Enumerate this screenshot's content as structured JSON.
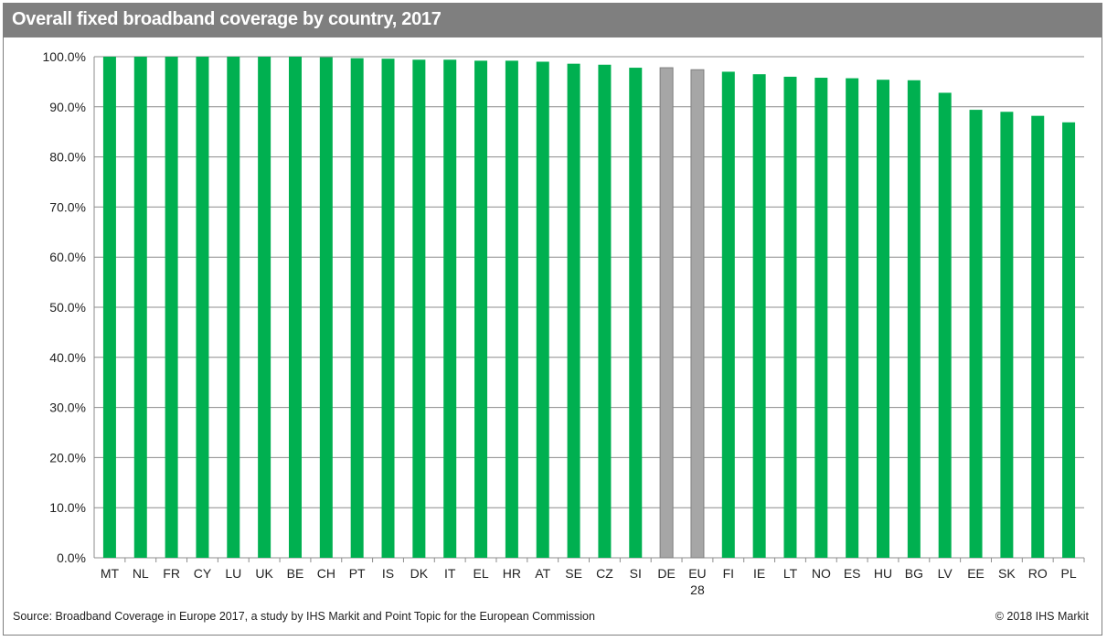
{
  "title": "Overall fixed broadband coverage by country, 2017",
  "footer": {
    "source": "Source: Broadband Coverage in Europe 2017, a study by IHS Markit and Point Topic for the European Commission",
    "copyright": "© 2018 IHS Markit"
  },
  "colors": {
    "bar": "#00b050",
    "highlight": "#a6a6a6",
    "highlight_border": "#7f7f7f",
    "title_bg": "#7f7f7f"
  },
  "chart_data": {
    "type": "bar",
    "categories": [
      "MT",
      "NL",
      "FR",
      "CY",
      "LU",
      "UK",
      "BE",
      "CH",
      "PT",
      "IS",
      "DK",
      "IT",
      "EL",
      "HR",
      "AT",
      "SE",
      "CZ",
      "SI",
      "DE",
      "EU 28",
      "FI",
      "IE",
      "LT",
      "NO",
      "ES",
      "HU",
      "BG",
      "LV",
      "EE",
      "SK",
      "RO",
      "PL"
    ],
    "values": [
      100.0,
      100.0,
      100.0,
      100.0,
      100.0,
      100.0,
      100.0,
      99.9,
      99.7,
      99.6,
      99.4,
      99.4,
      99.2,
      99.2,
      99.0,
      98.6,
      98.4,
      97.8,
      97.8,
      97.4,
      97.0,
      96.5,
      96.0,
      95.8,
      95.7,
      95.4,
      95.3,
      92.8,
      89.4,
      89.0,
      88.2,
      86.9
    ],
    "highlight_categories": [
      "DE",
      "EU 28"
    ],
    "ylim": [
      0,
      100
    ],
    "yticks": [
      "0.0%",
      "10.0%",
      "20.0%",
      "30.0%",
      "40.0%",
      "50.0%",
      "60.0%",
      "70.0%",
      "80.0%",
      "90.0%",
      "100.0%"
    ],
    "grid": true,
    "xlabel": "",
    "ylabel": ""
  }
}
